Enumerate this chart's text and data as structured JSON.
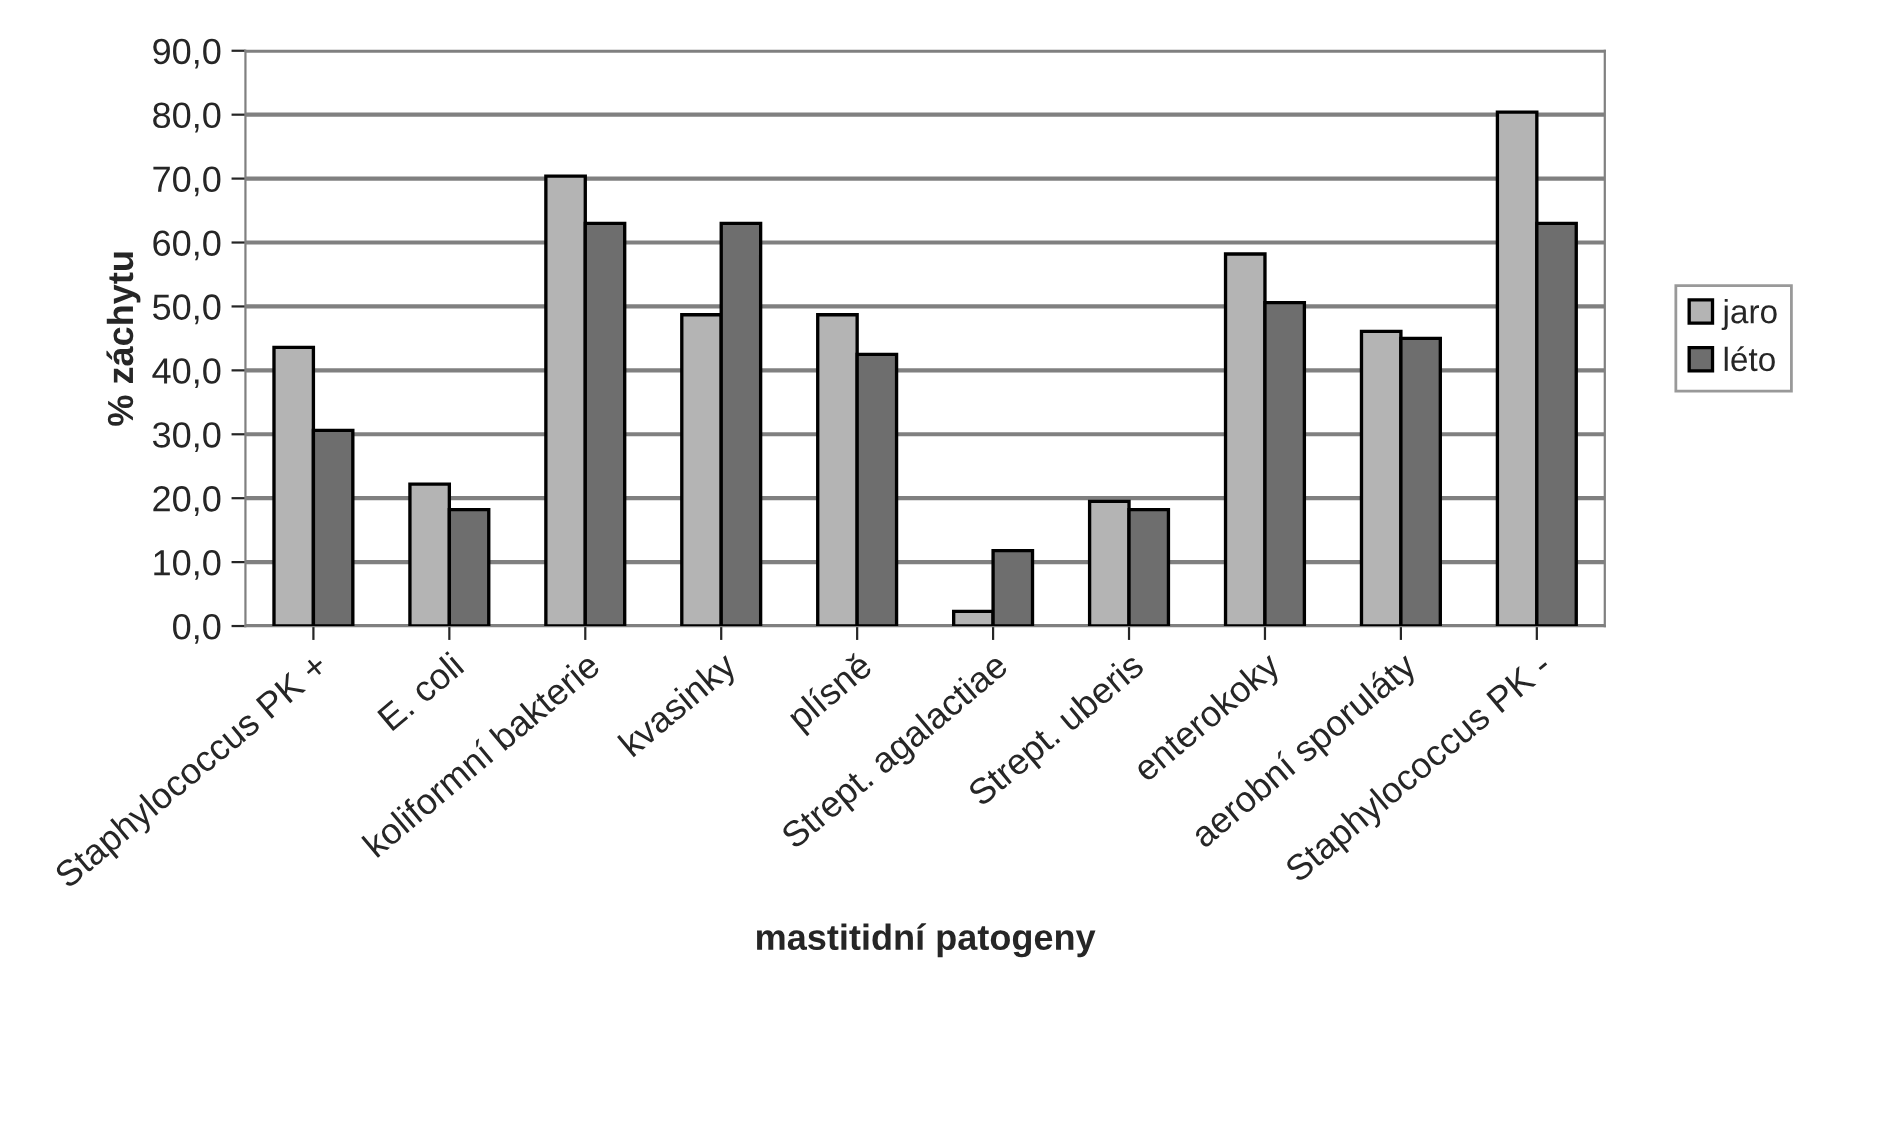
{
  "chart_data": {
    "type": "bar",
    "xlabel": "mastitidní patogeny",
    "ylabel": "% záchytu",
    "categories": [
      "Staphylococcus PK +",
      "E. coli",
      "koliformní bakterie",
      "kvasinky",
      "plísně",
      "Strept. agalactiae",
      "Strept. uberis",
      "enterokoky",
      "aerobní sporuláty",
      "Staphylococcus PK -"
    ],
    "series": [
      {
        "name": "jaro",
        "color": "#b4b4b4",
        "values": [
          43.6,
          22.2,
          70.4,
          48.7,
          48.7,
          2.3,
          19.5,
          58.2,
          46.1,
          80.4
        ]
      },
      {
        "name": "léto",
        "color": "#6e6e6e",
        "values": [
          30.6,
          18.2,
          63.0,
          63.0,
          42.5,
          11.8,
          18.2,
          50.6,
          45.0,
          63.0
        ]
      }
    ],
    "ylim": [
      0,
      90
    ],
    "yticks": [
      {
        "value": 0,
        "label": "0,0"
      },
      {
        "value": 10,
        "label": "10,0"
      },
      {
        "value": 20,
        "label": "20,0"
      },
      {
        "value": 30,
        "label": "30,0"
      },
      {
        "value": 40,
        "label": "40,0"
      },
      {
        "value": 50,
        "label": "50,0"
      },
      {
        "value": 60,
        "label": "60,0"
      },
      {
        "value": 70,
        "label": "70,0"
      },
      {
        "value": 80,
        "label": "80,0"
      },
      {
        "value": 90,
        "label": "90,0"
      }
    ],
    "grid": "y",
    "legend": "right"
  }
}
